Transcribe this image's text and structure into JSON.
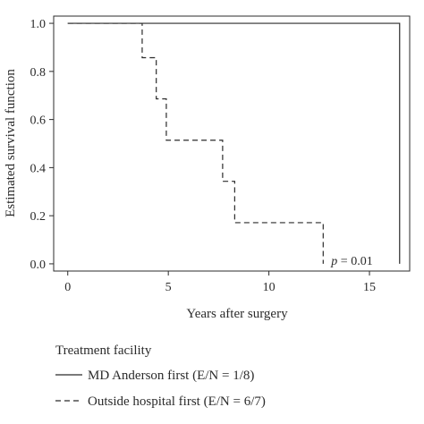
{
  "chart_data": {
    "type": "line",
    "step": true,
    "xlabel": "Years after surgery",
    "ylabel": "Estimated survival function",
    "xlim": [
      -0.7,
      17.0
    ],
    "ylim": [
      -0.03,
      1.03
    ],
    "x_ticks": [
      0,
      5,
      10,
      15
    ],
    "y_ticks": [
      0.0,
      0.2,
      0.4,
      0.6,
      0.8,
      1.0
    ],
    "x_tick_labels": [
      "0",
      "5",
      "10",
      "15"
    ],
    "y_tick_labels": [
      "0.0",
      "0.2",
      "0.4",
      "0.6",
      "0.8",
      "1.0"
    ],
    "grid": false,
    "legend": {
      "title": "Treatment facility",
      "placement": "bottom"
    },
    "annotation": {
      "p_symbol": "p",
      "p_rest": " = 0.01",
      "x": 13.1,
      "y": 0.0
    },
    "series": [
      {
        "name": "MD Anderson first (E/N = 1/8)",
        "style": "solid",
        "color": "#2b2b2b",
        "x": [
          0,
          16.5,
          16.5
        ],
        "y": [
          1.0,
          1.0,
          0.0
        ]
      },
      {
        "name": "Outside hospital first (E/N = 6/7)",
        "style": "dashed",
        "color": "#2b2b2b",
        "x": [
          0,
          3.7,
          4.4,
          4.9,
          7.7,
          8.3,
          12.7,
          12.7
        ],
        "y": [
          1.0,
          0.857,
          0.686,
          0.514,
          0.343,
          0.171,
          0.0,
          0.0
        ]
      }
    ]
  }
}
